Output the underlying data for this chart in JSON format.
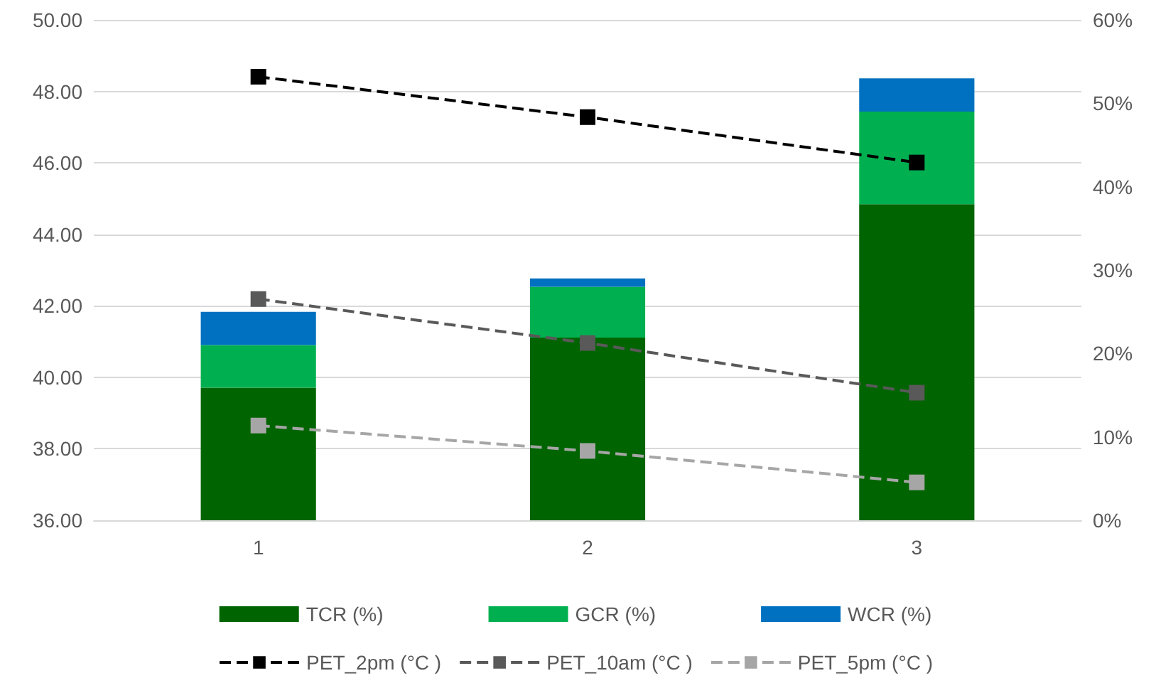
{
  "chart_data": {
    "type": "bar",
    "stacked": true,
    "categories": [
      "1",
      "2",
      "3"
    ],
    "series": [
      {
        "name": "TCR (%)",
        "color": "#006400",
        "axis": "y2",
        "values": [
          15.9,
          21.9,
          37.9
        ]
      },
      {
        "name": "GCR (%)",
        "color": "#00b050",
        "axis": "y2",
        "values": [
          5.1,
          6.1,
          11.1
        ]
      },
      {
        "name": "WCR (%)",
        "color": "#0070c0",
        "axis": "y2",
        "values": [
          4.0,
          1.0,
          4.0
        ]
      },
      {
        "name": "PET_2pm (°C )",
        "type": "line",
        "color": "#000000",
        "values": [
          48.41,
          47.28,
          46.01
        ]
      },
      {
        "name": "PET_10am (°C )",
        "type": "line",
        "color": "#595959",
        "values": [
          42.19,
          40.96,
          39.57
        ]
      },
      {
        "name": "PET_5pm (°C )",
        "type": "line",
        "color": "#a6a6a6",
        "values": [
          38.65,
          37.94,
          37.06
        ]
      }
    ],
    "ylim": [
      36,
      50
    ],
    "yticks": [
      {
        "value": 36,
        "label": "36.00"
      },
      {
        "value": 38,
        "label": "38.00"
      },
      {
        "value": 40,
        "label": "40.00"
      },
      {
        "value": 42,
        "label": "42.00"
      },
      {
        "value": 44,
        "label": "44.00"
      },
      {
        "value": 46,
        "label": "46.00"
      },
      {
        "value": 48,
        "label": "48.00"
      },
      {
        "value": 50,
        "label": "50.00"
      }
    ],
    "y2lim": [
      0,
      60
    ],
    "y2ticks": [
      {
        "value": 0,
        "label": "0%"
      },
      {
        "value": 10,
        "label": "10%"
      },
      {
        "value": 20,
        "label": "20%"
      },
      {
        "value": 30,
        "label": "30%"
      },
      {
        "value": 40,
        "label": "40%"
      },
      {
        "value": 50,
        "label": "50%"
      },
      {
        "value": 60,
        "label": "60%"
      }
    ],
    "grid": "y",
    "legend": "bottom",
    "marker": "square",
    "line_style": "dashed"
  }
}
